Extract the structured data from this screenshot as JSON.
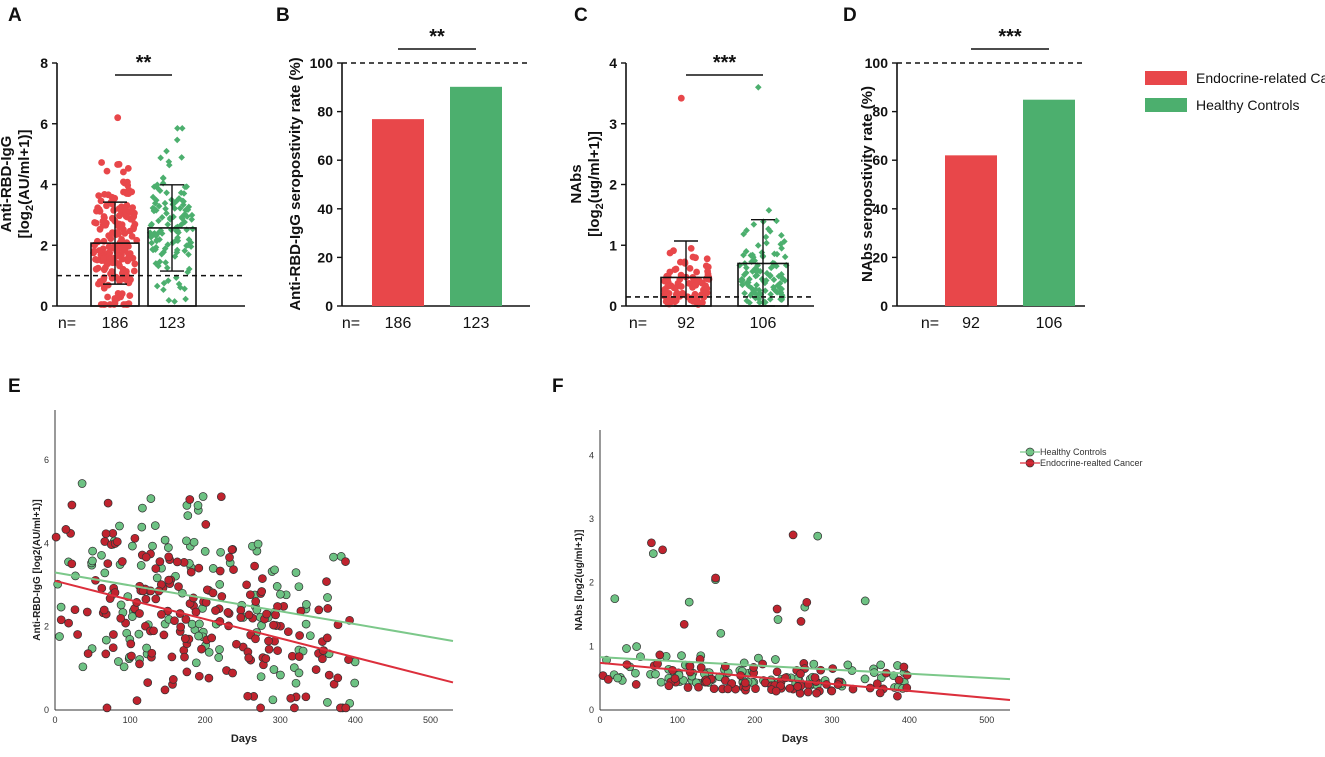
{
  "colors": {
    "cancer": "#e8474a",
    "control": "#4caf6e",
    "cancer_dot": "#c0232e",
    "control_dot": "#6dc283",
    "cancer_line": "#dc2f3c",
    "control_line": "#7cc88a"
  },
  "legend_main": {
    "cancer": "Endocrine-related Cancer",
    "control": "Healthy Controls"
  },
  "chart_data": [
    {
      "panel": "A",
      "type": "bar",
      "ylabel_line1": "Anti-RBD-IgG",
      "ylabel_line2_pre": "[log",
      "ylabel_line2_sub": "2",
      "ylabel_line2_post": "(AU/ml+1)]",
      "ylim": [
        0,
        8
      ],
      "yticks": [
        0,
        2,
        4,
        6,
        8
      ],
      "threshold": 1,
      "significance": "**",
      "n_prefix": "n=",
      "n_values": [
        "186",
        "123"
      ],
      "series": [
        {
          "name": "Endocrine-related Cancer",
          "mean": 2.07,
          "sd": 1.35,
          "n": 186,
          "min": 0.05,
          "max": 6.2
        },
        {
          "name": "Healthy Controls",
          "mean": 2.57,
          "sd": 1.42,
          "n": 123,
          "min": 0.15,
          "max": 5.85
        }
      ]
    },
    {
      "panel": "B",
      "type": "bar",
      "ylabel_line1": "Anti-RBD-IgG seropostivity rate (%)",
      "ylim": [
        0,
        100
      ],
      "yticks": [
        0,
        20,
        40,
        60,
        80,
        100
      ],
      "reference": 100,
      "significance": "**",
      "n_prefix": "n=",
      "n_values": [
        "186",
        "123"
      ],
      "series": [
        {
          "name": "Endocrine-related Cancer",
          "value": 76.9
        },
        {
          "name": "Healthy Controls",
          "value": 90.2
        }
      ]
    },
    {
      "panel": "C",
      "type": "bar",
      "ylabel_line1": "NAbs",
      "ylabel_line2_pre": "[log",
      "ylabel_line2_sub": "2",
      "ylabel_line2_post": "(ug/ml+1)]",
      "ylim": [
        0,
        4
      ],
      "yticks": [
        0,
        1,
        2,
        3,
        4
      ],
      "threshold": 0.15,
      "significance": "***",
      "n_prefix": "n=",
      "n_values": [
        "92",
        "106"
      ],
      "series": [
        {
          "name": "Endocrine-related Cancer",
          "mean": 0.47,
          "sd": 0.6,
          "n": 92,
          "min": 0.02,
          "max": 3.42
        },
        {
          "name": "Healthy Controls",
          "mean": 0.7,
          "sd": 0.72,
          "n": 106,
          "min": 0.05,
          "max": 3.6
        }
      ]
    },
    {
      "panel": "D",
      "type": "bar",
      "ylabel_line1": "NAbs seropostivity rate (%)",
      "ylim": [
        0,
        100
      ],
      "yticks": [
        0,
        20,
        40,
        60,
        80,
        100
      ],
      "reference": 100,
      "significance": "***",
      "n_prefix": "n=",
      "n_values": [
        "92",
        "106"
      ],
      "series": [
        {
          "name": "Endocrine-related Cancer",
          "value": 62.0
        },
        {
          "name": "Healthy Controls",
          "value": 84.9
        }
      ]
    },
    {
      "panel": "E",
      "type": "scatter",
      "xlabel": "Days",
      "ylabel": "Anti-RBD-IgG [log2(AU/ml+1)]",
      "xlim": [
        0,
        530
      ],
      "ylim": [
        0,
        7.2
      ],
      "xticks": [
        0,
        100,
        200,
        300,
        400,
        500
      ],
      "yticks": [
        0,
        2,
        4,
        6
      ],
      "n_cancer": 186,
      "n_control": 123,
      "fits": {
        "control": {
          "intercept": 3.3,
          "slope": -0.0031
        },
        "cancer": {
          "intercept": 3.1,
          "slope": -0.0046
        }
      }
    },
    {
      "panel": "F",
      "type": "scatter",
      "xlabel": "Days",
      "ylabel": "NAbs [log2(ug/ml+1)]",
      "xlim": [
        0,
        530
      ],
      "ylim": [
        0,
        4.4
      ],
      "xticks": [
        0,
        100,
        200,
        300,
        400,
        500
      ],
      "yticks": [
        0,
        1,
        2,
        3,
        4
      ],
      "n_cancer": 92,
      "n_control": 106,
      "legend": {
        "control": "Healthy Controls",
        "cancer": "Endocrine-realted Cancer"
      },
      "fits": {
        "control": {
          "intercept": 0.83,
          "slope": -0.00065
        },
        "cancer": {
          "intercept": 0.74,
          "slope": -0.0011
        }
      }
    }
  ]
}
